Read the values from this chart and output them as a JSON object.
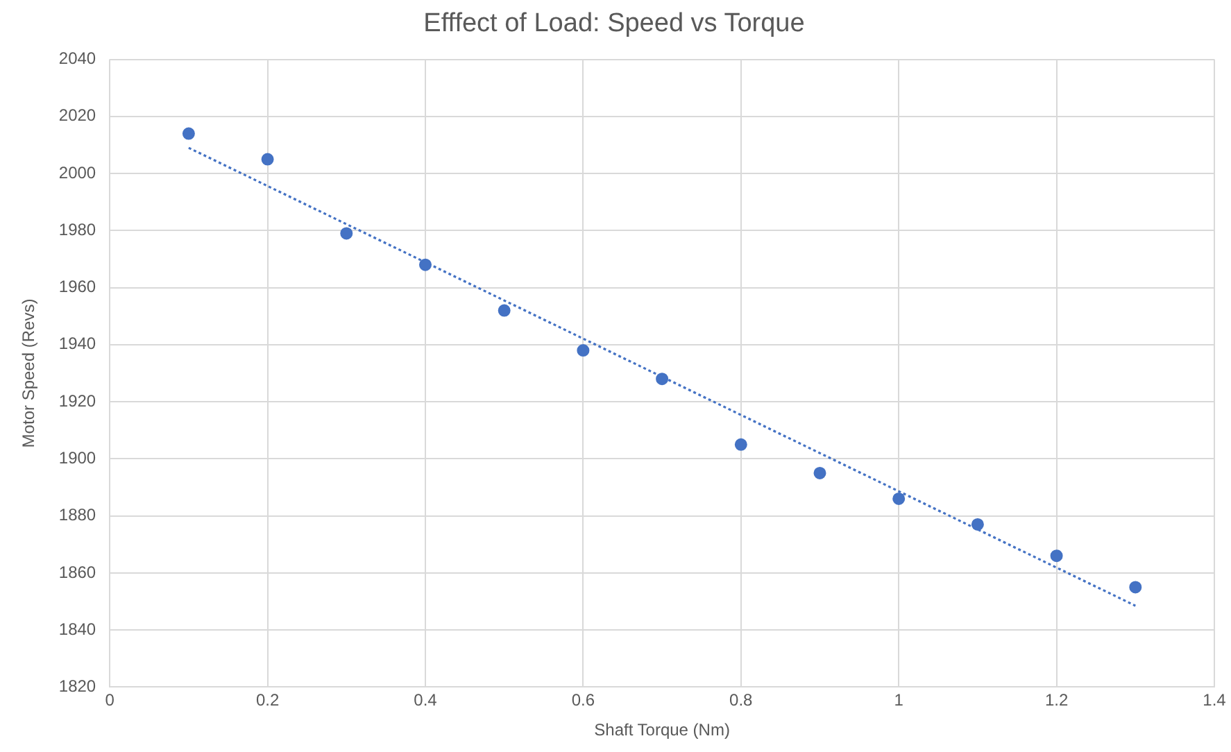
{
  "chart_data": {
    "type": "scatter",
    "title": "Efffect of Load: Speed vs Torque",
    "xlabel": "Shaft Torque (Nm)",
    "ylabel": "Motor Speed (Revs)",
    "series": [
      {
        "type": "scatter",
        "color": "#4472c4",
        "marker": "circle",
        "x": [
          0.1,
          0.2,
          0.3,
          0.4,
          0.5,
          0.6,
          0.7,
          0.8,
          0.9,
          1.0,
          1.1,
          1.2,
          1.3
        ],
        "values": [
          2014,
          2005,
          1979,
          1968,
          1952,
          1938,
          1928,
          1905,
          1895,
          1886,
          1877,
          1866,
          1855
        ]
      },
      {
        "type": "line",
        "color": "#4472c4",
        "line_style": "dotted",
        "marker": "none",
        "x": [
          0.1,
          1.3
        ],
        "values": [
          2009,
          1848.5
        ]
      }
    ],
    "xlim": [
      0,
      1.4
    ],
    "xticks": [
      0,
      0.2,
      0.4,
      0.6,
      0.8,
      1,
      1.2,
      1.4
    ],
    "ylim": [
      1820,
      2040
    ],
    "yticks": [
      1820,
      1840,
      1860,
      1880,
      1900,
      1920,
      1940,
      1960,
      1980,
      2000,
      2020,
      2040
    ],
    "grid": true,
    "legend": false
  }
}
